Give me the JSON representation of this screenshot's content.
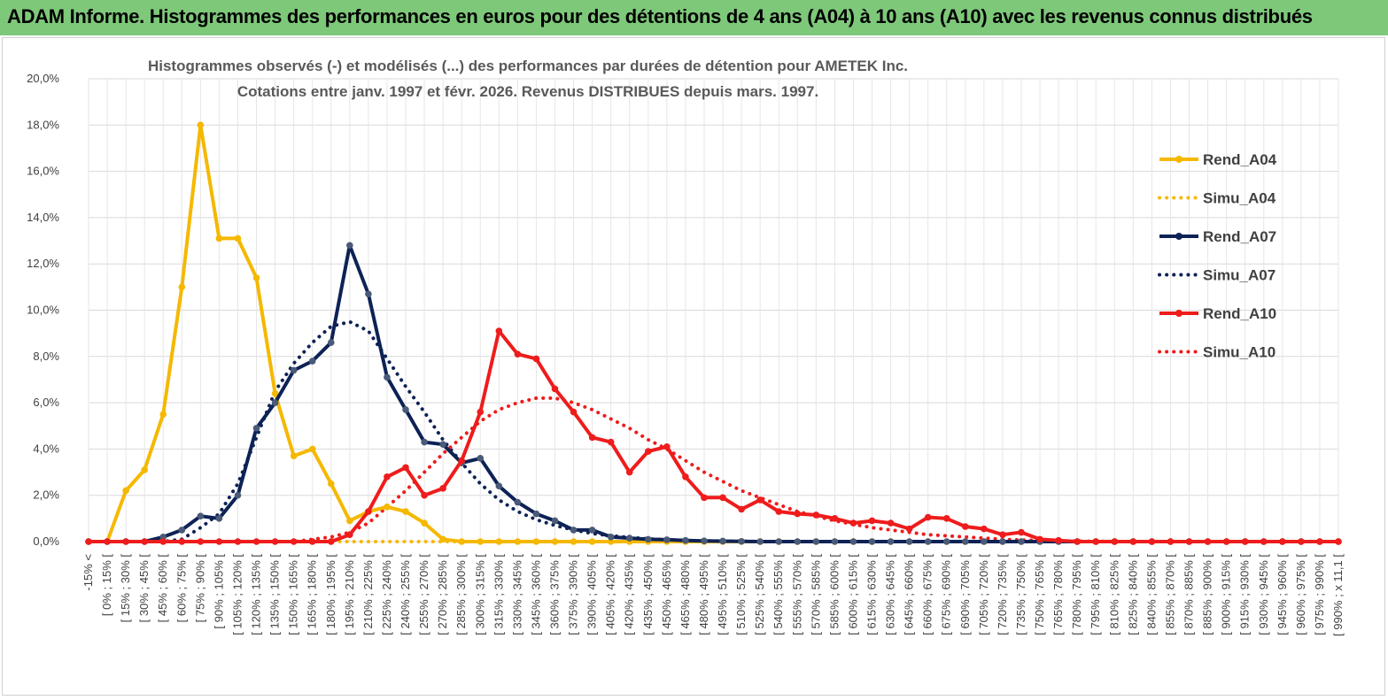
{
  "header": {
    "title": "ADAM Informe. Histogrammes des performances en euros pour des détentions de 4 ans (A04) à 10 ans (A10) avec les revenus connus distribués"
  },
  "chart_data": {
    "type": "line",
    "title": "Histogrammes observés (-) et modélisés (...) des performances par durées de détention pour AMETEK Inc.",
    "subtitle": "Cotations entre janv. 1997 et févr. 2026. Revenus DISTRIBUES depuis mars. 1997.",
    "ylim": [
      0,
      20
    ],
    "yticks": [
      "0,0%",
      "2,0%",
      "4,0%",
      "6,0%",
      "8,0%",
      "10,0%",
      "12,0%",
      "14,0%",
      "16,0%",
      "18,0%",
      "20,0%"
    ],
    "grid": true,
    "legend_position": "right",
    "categories": [
      "-15% <",
      "[ 0% ; 15% [",
      "[ 15% ; 30% [",
      "[ 30% ; 45% [",
      "[ 45% ; 60% [",
      "[ 60% ; 75% [",
      "[ 75% ; 90% [",
      "[ 90% ; 105% [",
      "[ 105% ; 120% [",
      "[ 120% ; 135% [",
      "[ 135% ; 150% [",
      "[ 150% ; 165% [",
      "[ 165% ; 180% [",
      "[ 180% ; 195% [",
      "[ 195% ; 210% [",
      "[ 210% ; 225% [",
      "[ 225% ; 240% [",
      "[ 240% ; 255% [",
      "[ 255% ; 270% [",
      "[ 270% ; 285% [",
      "[ 285% ; 300% [",
      "[ 300% ; 315% [",
      "[ 315% ; 330% [",
      "[ 330% ; 345% [",
      "[ 345% ; 360% [",
      "[ 360% ; 375% [",
      "[ 375% ; 390% [",
      "[ 390% ; 405% [",
      "[ 405% ; 420% [",
      "[ 420% ; 435% [",
      "[ 435% ; 450% [",
      "[ 450% ; 465% [",
      "[ 465% ; 480% [",
      "[ 480% ; 495% [",
      "[ 495% ; 510% [",
      "[ 510% ; 525% [",
      "[ 525% ; 540% [",
      "[ 540% ; 555% [",
      "[ 555% ; 570% [",
      "[ 570% ; 585% [",
      "[ 585% ; 600% [",
      "[ 600% ; 615% [",
      "[ 615% ; 630% [",
      "[ 630% ; 645% [",
      "[ 645% ; 660% [",
      "[ 660% ; 675% [",
      "[ 675% ; 690% [",
      "[ 690% ; 705% [",
      "[ 705% ; 720% [",
      "[ 720% ; 735% [",
      "[ 735% ; 750% [",
      "[ 750% ; 765% [",
      "[ 765% ; 780% [",
      "[ 780% ; 795% [",
      "[ 795% ; 810% [",
      "[ 810% ; 825% [",
      "[ 825% ; 840% [",
      "[ 840% ; 855% [",
      "[ 855% ; 870% [",
      "[ 870% ; 885% [",
      "[ 885% ; 900% [",
      "[ 900% ; 915% [",
      "[ 915% ; 930% [",
      "[ 930% ; 945% [",
      "[ 945% ; 960% [",
      "[ 960% ; 975% [",
      "[ 975% ; 990% [",
      "[ 990% ; x 11,1 ["
    ],
    "series": [
      {
        "name": "Rend_A04",
        "style": "solid",
        "color": "#f5b800",
        "values": [
          0,
          0,
          2.2,
          3.1,
          5.5,
          11,
          18,
          13.1,
          13.1,
          11.4,
          6.4,
          3.7,
          4.0,
          2.5,
          0.9,
          1.3,
          1.5,
          1.3,
          0.8,
          0.1,
          0,
          0,
          0,
          0,
          0,
          0,
          0,
          0,
          0,
          0,
          0,
          0,
          0,
          0,
          0,
          0,
          0,
          0,
          0,
          0,
          0,
          0,
          0,
          0,
          0,
          0,
          0,
          0,
          0,
          0,
          0,
          0,
          0,
          0,
          0,
          0,
          0,
          0,
          0,
          0,
          0,
          0,
          0,
          0,
          0,
          0,
          0,
          0
        ]
      },
      {
        "name": "Simu_A04",
        "style": "dotted",
        "color": "#f5b800",
        "values": [
          0,
          0,
          0,
          0,
          0,
          0,
          0,
          0,
          0,
          0,
          0,
          0,
          0,
          0,
          0,
          0,
          0,
          0,
          0,
          0,
          0,
          0,
          0,
          0,
          0,
          0,
          0,
          0,
          0,
          0,
          0,
          0,
          0,
          0,
          0,
          0,
          0,
          0,
          0,
          0,
          0,
          0,
          0,
          0,
          0,
          0,
          0,
          0,
          0,
          0,
          0,
          0,
          0,
          0,
          0,
          0,
          0,
          0,
          0,
          0,
          0,
          0,
          0,
          0,
          0,
          0,
          0,
          0
        ]
      },
      {
        "name": "Rend_A07",
        "style": "solid",
        "color": "#0d2255",
        "values": [
          0,
          0,
          0,
          0,
          0.2,
          0.5,
          1.1,
          1.0,
          2.0,
          4.9,
          6.0,
          7.4,
          7.8,
          8.6,
          12.8,
          10.7,
          7.1,
          5.7,
          4.3,
          4.2,
          3.4,
          3.6,
          2.4,
          1.7,
          1.2,
          0.9,
          0.5,
          0.5,
          0.2,
          0.15,
          0.1,
          0.08,
          0.05,
          0.03,
          0.02,
          0.01,
          0,
          0,
          0,
          0,
          0,
          0,
          0,
          0,
          0,
          0,
          0,
          0,
          0,
          0,
          0,
          0,
          0,
          0,
          0,
          0,
          0,
          0,
          0,
          0,
          0,
          0,
          0,
          0,
          0,
          0,
          0,
          0
        ]
      },
      {
        "name": "Simu_A07",
        "style": "dotted",
        "color": "#0d2255",
        "values": [
          0,
          0,
          0,
          0,
          0,
          0.1,
          0.6,
          1.2,
          2.5,
          4.5,
          6.5,
          7.7,
          8.6,
          9.3,
          9.5,
          9.1,
          7.9,
          6.7,
          5.6,
          4.4,
          3.4,
          2.5,
          1.8,
          1.3,
          0.95,
          0.7,
          0.5,
          0.35,
          0.25,
          0.18,
          0.12,
          0.08,
          0.05,
          0.03,
          0.02,
          0.01,
          0,
          0,
          0,
          0,
          0,
          0,
          0,
          0,
          0,
          0,
          0,
          0,
          0,
          0,
          0,
          0,
          0,
          0,
          0,
          0,
          0,
          0,
          0,
          0,
          0,
          0,
          0,
          0,
          0,
          0,
          0,
          0
        ]
      },
      {
        "name": "Rend_A10",
        "style": "solid",
        "color": "#ee1c1c",
        "values": [
          0,
          0,
          0,
          0,
          0,
          0,
          0,
          0,
          0,
          0,
          0,
          0,
          0,
          0,
          0.3,
          1.3,
          2.8,
          3.2,
          2.0,
          2.3,
          3.5,
          5.6,
          9.1,
          8.1,
          7.9,
          6.6,
          5.6,
          4.5,
          4.3,
          3.0,
          3.9,
          4.1,
          2.8,
          1.9,
          1.9,
          1.4,
          1.8,
          1.3,
          1.2,
          1.15,
          1.0,
          0.8,
          0.9,
          0.8,
          0.55,
          1.05,
          1.0,
          0.65,
          0.55,
          0.3,
          0.4,
          0.1,
          0.05,
          0,
          0,
          0,
          0,
          0,
          0,
          0,
          0,
          0,
          0,
          0,
          0,
          0,
          0,
          0
        ]
      },
      {
        "name": "Simu_A10",
        "style": "dotted",
        "color": "#ee1c1c",
        "values": [
          0,
          0,
          0,
          0,
          0,
          0,
          0,
          0,
          0,
          0,
          0,
          0,
          0.1,
          0.2,
          0.4,
          0.8,
          1.5,
          2.2,
          3.0,
          3.8,
          4.5,
          5.2,
          5.7,
          6.0,
          6.2,
          6.2,
          6.0,
          5.7,
          5.3,
          4.9,
          4.4,
          4.0,
          3.5,
          3.0,
          2.6,
          2.2,
          1.9,
          1.6,
          1.3,
          1.1,
          0.9,
          0.75,
          0.6,
          0.5,
          0.4,
          0.3,
          0.25,
          0.2,
          0.15,
          0.1,
          0.07,
          0.05,
          0.03,
          0.02,
          0.01,
          0,
          0,
          0,
          0,
          0,
          0,
          0,
          0,
          0,
          0,
          0,
          0,
          0
        ]
      }
    ]
  }
}
